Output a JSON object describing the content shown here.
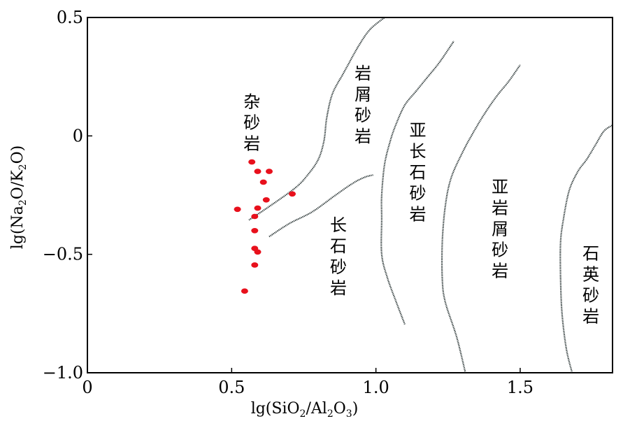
{
  "chart_data": {
    "type": "scatter",
    "xlabel_parts": [
      "lg(SiO",
      "2",
      "/Al",
      "2",
      "O",
      "3",
      ")"
    ],
    "ylabel_parts": [
      "lg(Na",
      "2",
      "O/K",
      "2",
      "O)"
    ],
    "xlim": [
      0,
      1.82
    ],
    "ylim": [
      -1.0,
      0.5
    ],
    "xticks": [
      {
        "value": 0,
        "label": "0"
      },
      {
        "value": 0.5,
        "label": "0.5"
      },
      {
        "value": 1.0,
        "label": "1.0"
      },
      {
        "value": 1.5,
        "label": "1.5"
      }
    ],
    "yticks": [
      {
        "value": 0.5,
        "label": "0.5"
      },
      {
        "value": 0,
        "label": "0"
      },
      {
        "value": -0.5,
        "label": "−0.5"
      },
      {
        "value": -1.0,
        "label": "−1.0"
      }
    ],
    "point_color": "#e8101c",
    "points": [
      {
        "x": 0.57,
        "y": -0.11
      },
      {
        "x": 0.59,
        "y": -0.15
      },
      {
        "x": 0.63,
        "y": -0.15
      },
      {
        "x": 0.61,
        "y": -0.195
      },
      {
        "x": 0.71,
        "y": -0.245
      },
      {
        "x": 0.62,
        "y": -0.27
      },
      {
        "x": 0.52,
        "y": -0.31
      },
      {
        "x": 0.59,
        "y": -0.305
      },
      {
        "x": 0.58,
        "y": -0.34
      },
      {
        "x": 0.58,
        "y": -0.4
      },
      {
        "x": 0.58,
        "y": -0.475
      },
      {
        "x": 0.59,
        "y": -0.49
      },
      {
        "x": 0.58,
        "y": -0.545
      },
      {
        "x": 0.545,
        "y": -0.655
      }
    ],
    "boundaries": [
      [
        [
          0.56,
          -0.355
        ],
        [
          0.64,
          -0.29
        ],
        [
          0.72,
          -0.22
        ],
        [
          0.76,
          -0.17
        ],
        [
          0.8,
          -0.1
        ],
        [
          0.82,
          -0.02
        ],
        [
          0.83,
          0.08
        ],
        [
          0.85,
          0.18
        ],
        [
          0.89,
          0.27
        ],
        [
          0.94,
          0.38
        ],
        [
          0.98,
          0.45
        ],
        [
          1.03,
          0.5
        ]
      ],
      [
        [
          0.63,
          -0.425
        ],
        [
          0.7,
          -0.37
        ],
        [
          0.78,
          -0.32
        ],
        [
          0.86,
          -0.25
        ],
        [
          0.92,
          -0.2
        ],
        [
          0.96,
          -0.175
        ],
        [
          0.99,
          -0.165
        ]
      ],
      [
        [
          1.1,
          -0.795
        ],
        [
          1.07,
          -0.7
        ],
        [
          1.04,
          -0.6
        ],
        [
          1.02,
          -0.5
        ],
        [
          1.02,
          -0.35
        ],
        [
          1.02,
          -0.25
        ],
        [
          1.03,
          -0.12
        ],
        [
          1.05,
          -0.02
        ],
        [
          1.07,
          0.05
        ],
        [
          1.1,
          0.13
        ],
        [
          1.14,
          0.19
        ],
        [
          1.18,
          0.25
        ],
        [
          1.22,
          0.31
        ],
        [
          1.27,
          0.4
        ]
      ],
      [
        [
          1.31,
          -1.0
        ],
        [
          1.28,
          -0.85
        ],
        [
          1.24,
          -0.7
        ],
        [
          1.23,
          -0.6
        ],
        [
          1.23,
          -0.45
        ],
        [
          1.24,
          -0.3
        ],
        [
          1.26,
          -0.18
        ],
        [
          1.3,
          -0.07
        ],
        [
          1.34,
          0.02
        ],
        [
          1.38,
          0.1
        ],
        [
          1.42,
          0.17
        ],
        [
          1.46,
          0.23
        ],
        [
          1.5,
          0.3
        ]
      ],
      [
        [
          1.68,
          -1.0
        ],
        [
          1.66,
          -0.9
        ],
        [
          1.645,
          -0.75
        ],
        [
          1.64,
          -0.6
        ],
        [
          1.64,
          -0.45
        ],
        [
          1.65,
          -0.35
        ],
        [
          1.67,
          -0.23
        ],
        [
          1.7,
          -0.15
        ],
        [
          1.73,
          -0.1
        ],
        [
          1.76,
          -0.04
        ],
        [
          1.79,
          0.02
        ],
        [
          1.82,
          0.045
        ]
      ]
    ],
    "regions": [
      {
        "name": "杂砂岩",
        "chars": [
          "杂",
          "砂",
          "岩"
        ],
        "x": 0.57,
        "y": 0.12
      },
      {
        "name": "岩屑砂岩",
        "chars": [
          "岩",
          "屑",
          "砂",
          "岩"
        ],
        "x": 0.955,
        "y": 0.24
      },
      {
        "name": "亚长石砂岩",
        "chars": [
          "亚",
          "长",
          "石",
          "砂",
          "岩"
        ],
        "x": 1.145,
        "y": 0.0
      },
      {
        "name": "长石砂岩",
        "chars": [
          "长",
          "石",
          "砂",
          "岩"
        ],
        "x": 0.87,
        "y": -0.4
      },
      {
        "name": "亚岩屑砂岩",
        "chars": [
          "亚",
          "岩",
          "屑",
          "砂",
          "岩"
        ],
        "x": 1.43,
        "y": -0.24
      },
      {
        "name": "石英砂岩",
        "chars": [
          "石",
          "英",
          "砂",
          "岩"
        ],
        "x": 1.745,
        "y": -0.52
      }
    ]
  }
}
